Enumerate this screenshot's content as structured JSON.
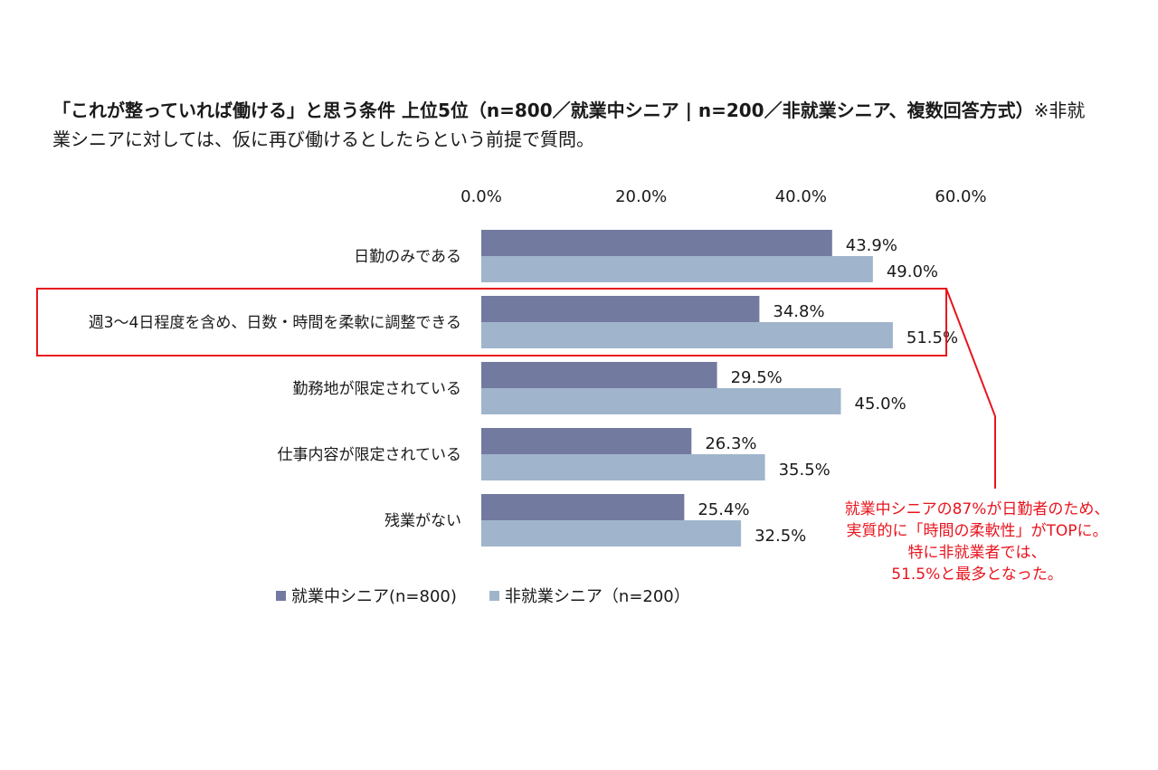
{
  "title": {
    "bold": "「これが整っていれば働ける」と思う条件 上位5位（n=800／就業中シニア | n=200／非就業シニア、複数回答方式）",
    "note": "※非就業シニアに対しては、仮に再び働けるとしたらという前提で質問。"
  },
  "annotation": {
    "lines": [
      "就業中シニアの87%が日勤者のため、",
      "実質的に「時間の柔軟性」がTOPに。",
      "特に非就業者では、",
      "51.5%と最多となった。"
    ],
    "color": "#e8141e"
  },
  "chart_data": {
    "type": "bar",
    "orientation": "horizontal",
    "title": "「これが整っていれば働ける」と思う条件 上位5位",
    "categories": [
      "日勤のみである",
      "週3〜4日程度を含め、日数・時間を柔軟に調整できる",
      "勤務地が限定されている",
      "仕事内容が限定されている",
      "残業がない"
    ],
    "series": [
      {
        "name": "就業中シニア(n=800)",
        "color": "#737aa0",
        "values": [
          43.9,
          34.8,
          29.5,
          26.3,
          25.4
        ]
      },
      {
        "name": "非就業シニア（n=200）",
        "color": "#a0b5cb",
        "values": [
          49.0,
          51.5,
          45.0,
          35.5,
          32.5
        ]
      }
    ],
    "xlim": [
      0,
      60
    ],
    "xticks": [
      0,
      20,
      40,
      60
    ],
    "xtick_labels": [
      "0.0%",
      "20.0%",
      "40.0%",
      "60.0%"
    ],
    "xaxis_position": "top",
    "grid": false,
    "legend_position": "bottom",
    "highlighted_category": "週3〜4日程度を含め、日数・時間を柔軟に調整できる",
    "highlight_color": "#e8141e",
    "value_format": "0.0%"
  }
}
